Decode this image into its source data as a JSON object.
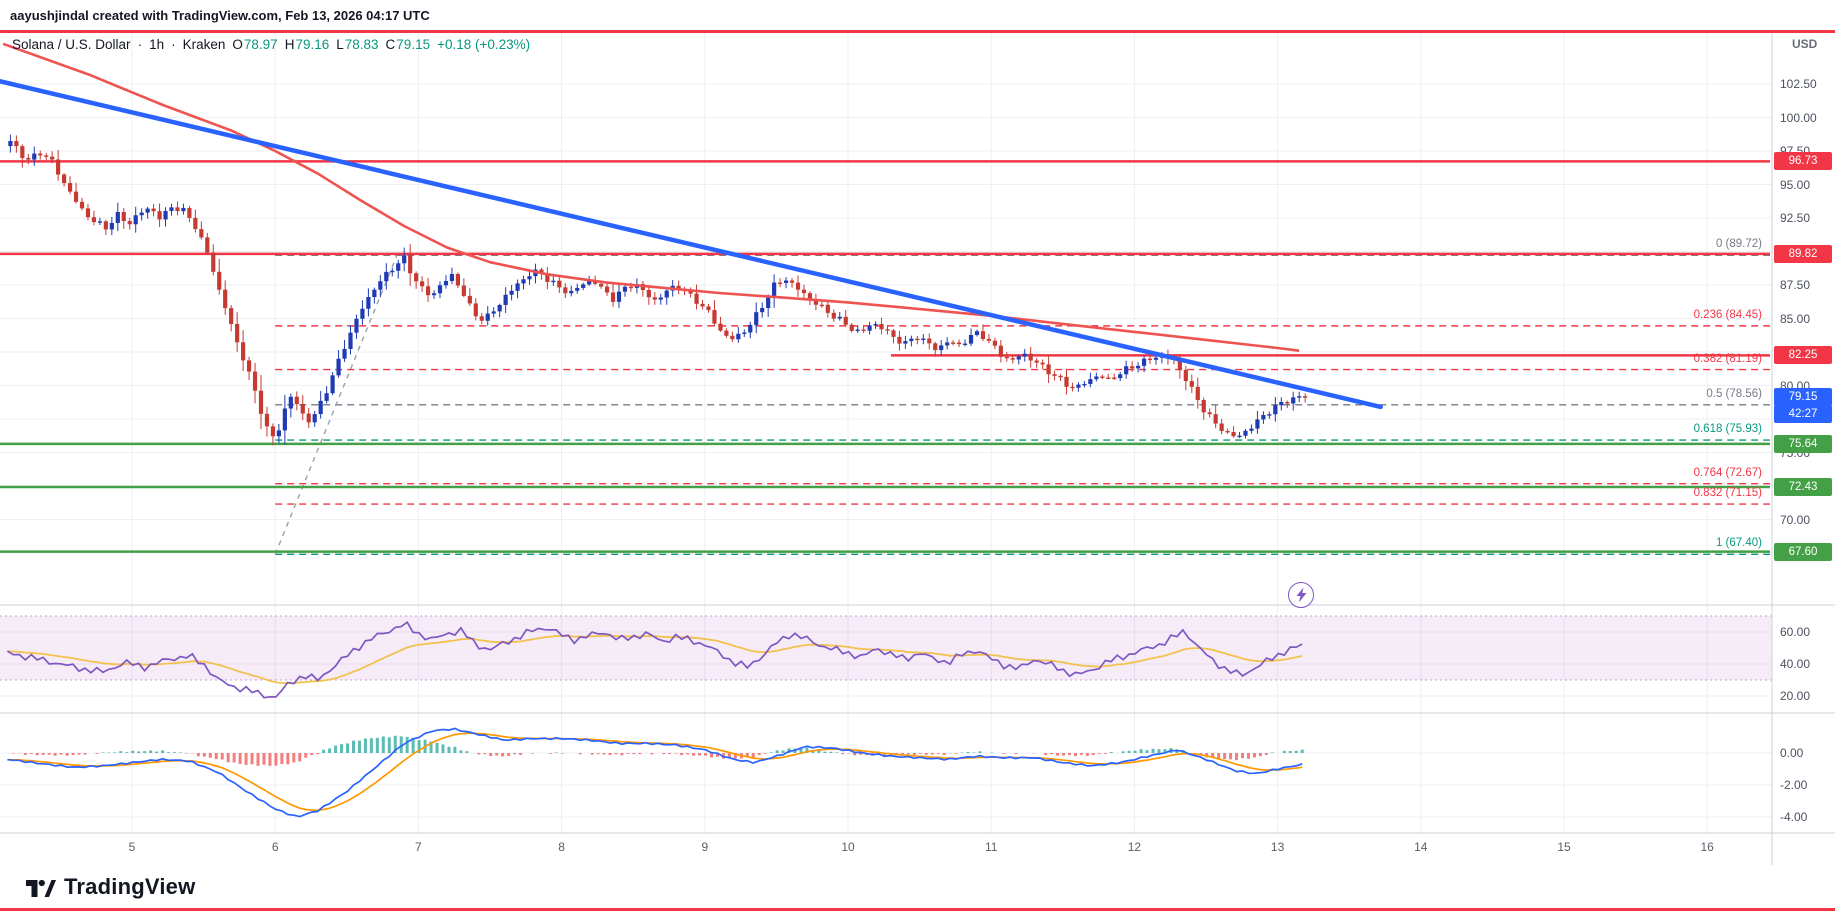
{
  "attribution": "aayushjindal created with TradingView.com, Feb 13, 2026 04:17 UTC",
  "symbol_header": {
    "name": "Solana / U.S. Dollar",
    "separator": "·",
    "interval": "1h",
    "exchange": "Kraken",
    "ohlc": [
      {
        "label": "O",
        "value": "78.97"
      },
      {
        "label": "H",
        "value": "79.16"
      },
      {
        "label": "L",
        "value": "78.83"
      },
      {
        "label": "C",
        "value": "79.15"
      }
    ],
    "change": "+0.18 (+0.23%)"
  },
  "price_axis": {
    "currency": "USD",
    "ticks": [
      "102.50",
      "100.00",
      "97.50",
      "95.00",
      "92.50",
      "90.00",
      "87.50",
      "85.00",
      "82.50",
      "80.00",
      "77.50",
      "75.00",
      "72.50",
      "70.00",
      "67.50"
    ],
    "badges": [
      {
        "text": "96.73",
        "price": 96.73,
        "color": "#f23645"
      },
      {
        "text": "89.82",
        "price": 89.82,
        "color": "#f23645"
      },
      {
        "text": "82.25",
        "price": 82.25,
        "color": "#f23645"
      },
      {
        "text": "79.15",
        "price": 79.15,
        "color": "#2962ff"
      },
      {
        "text": "42:27",
        "price": 77.88,
        "color": "#2962ff"
      },
      {
        "text": "75.64",
        "price": 75.64,
        "color": "#43a047"
      },
      {
        "text": "72.43",
        "price": 72.43,
        "color": "#43a047"
      },
      {
        "text": "67.60",
        "price": 67.6,
        "color": "#43a047"
      }
    ]
  },
  "rsi_axis": [
    "60.00",
    "40.00",
    "20.00"
  ],
  "macd_axis": [
    "0.00",
    "-2.00",
    "-4.00"
  ],
  "time_axis": {
    "labels": [
      "5",
      "6",
      "7",
      "8",
      "9",
      "10",
      "11",
      "12",
      "13",
      "14",
      "15",
      "16"
    ]
  },
  "logo": {
    "text": "TradingView"
  },
  "chart_data": {
    "type": "candlestick",
    "title": "Solana / U.S. Dollar",
    "interval": "1h",
    "exchange": "Kraken",
    "x_unit": "day of Feb 2026",
    "y_range": [
      66,
      104.5
    ],
    "ohlc_current": {
      "open": 78.97,
      "high": 79.16,
      "low": 78.83,
      "close": 79.15,
      "change_pct": 0.23
    },
    "start_day": 4.13,
    "end_day": 13.18,
    "colors": {
      "bull": "#1f3bb3",
      "bear": "#c63a32"
    },
    "price_path": [
      [
        4.13,
        97.9
      ],
      [
        4.18,
        98.3
      ],
      [
        4.24,
        97.3
      ],
      [
        4.3,
        96.8
      ],
      [
        4.38,
        97.4
      ],
      [
        4.45,
        96.9
      ],
      [
        4.52,
        95.6
      ],
      [
        4.6,
        94.2
      ],
      [
        4.68,
        93.0
      ],
      [
        4.76,
        92.2
      ],
      [
        4.84,
        91.8
      ],
      [
        4.92,
        92.7
      ],
      [
        5.0,
        92.1
      ],
      [
        5.08,
        92.9
      ],
      [
        5.15,
        93.3
      ],
      [
        5.22,
        92.4
      ],
      [
        5.3,
        93.4
      ],
      [
        5.38,
        93.0
      ],
      [
        5.45,
        92.2
      ],
      [
        5.5,
        91.0
      ],
      [
        5.56,
        89.6
      ],
      [
        5.62,
        87.4
      ],
      [
        5.68,
        85.6
      ],
      [
        5.74,
        83.6
      ],
      [
        5.8,
        82.0
      ],
      [
        5.86,
        80.2
      ],
      [
        5.92,
        78.2
      ],
      [
        5.97,
        76.6
      ],
      [
        6.02,
        75.9
      ],
      [
        6.07,
        77.6
      ],
      [
        6.12,
        79.3
      ],
      [
        6.18,
        78.5
      ],
      [
        6.24,
        77.3
      ],
      [
        6.3,
        77.8
      ],
      [
        6.36,
        79.2
      ],
      [
        6.43,
        80.9
      ],
      [
        6.5,
        82.8
      ],
      [
        6.57,
        84.5
      ],
      [
        6.64,
        86.0
      ],
      [
        6.71,
        87.2
      ],
      [
        6.78,
        88.1
      ],
      [
        6.85,
        88.9
      ],
      [
        6.92,
        89.5
      ],
      [
        6.97,
        88.4
      ],
      [
        7.04,
        87.3
      ],
      [
        7.11,
        86.6
      ],
      [
        7.18,
        87.6
      ],
      [
        7.26,
        88.2
      ],
      [
        7.33,
        87.0
      ],
      [
        7.4,
        85.4
      ],
      [
        7.48,
        84.9
      ],
      [
        7.56,
        85.7
      ],
      [
        7.63,
        86.7
      ],
      [
        7.71,
        87.5
      ],
      [
        7.79,
        88.3
      ],
      [
        7.86,
        88.5
      ],
      [
        7.93,
        87.9
      ],
      [
        8.0,
        87.3
      ],
      [
        8.08,
        86.9
      ],
      [
        8.16,
        87.5
      ],
      [
        8.24,
        87.9
      ],
      [
        8.31,
        87.1
      ],
      [
        8.38,
        86.5
      ],
      [
        8.46,
        87.2
      ],
      [
        8.53,
        87.7
      ],
      [
        8.6,
        86.9
      ],
      [
        8.68,
        86.3
      ],
      [
        8.76,
        87.1
      ],
      [
        8.83,
        87.5
      ],
      [
        8.9,
        86.8
      ],
      [
        8.98,
        86.2
      ],
      [
        9.05,
        85.4
      ],
      [
        9.12,
        84.2
      ],
      [
        9.2,
        83.4
      ],
      [
        9.28,
        83.9
      ],
      [
        9.35,
        84.7
      ],
      [
        9.43,
        86.1
      ],
      [
        9.5,
        87.4
      ],
      [
        9.58,
        88.0
      ],
      [
        9.66,
        87.3
      ],
      [
        9.73,
        86.7
      ],
      [
        9.8,
        86.1
      ],
      [
        9.88,
        85.5
      ],
      [
        9.96,
        84.9
      ],
      [
        10.04,
        84.3
      ],
      [
        10.11,
        83.9
      ],
      [
        10.19,
        84.7
      ],
      [
        10.27,
        84.2
      ],
      [
        10.34,
        83.6
      ],
      [
        10.42,
        83.1
      ],
      [
        10.5,
        83.7
      ],
      [
        10.57,
        83.2
      ],
      [
        10.64,
        82.7
      ],
      [
        10.72,
        83.3
      ],
      [
        10.8,
        83.0
      ],
      [
        10.87,
        83.6
      ],
      [
        10.94,
        84.0
      ],
      [
        11.02,
        83.1
      ],
      [
        11.09,
        82.3
      ],
      [
        11.16,
        81.8
      ],
      [
        11.24,
        82.4
      ],
      [
        11.31,
        81.9
      ],
      [
        11.39,
        81.3
      ],
      [
        11.47,
        80.7
      ],
      [
        11.54,
        80.1
      ],
      [
        11.61,
        79.8
      ],
      [
        11.69,
        80.3
      ],
      [
        11.77,
        80.8
      ],
      [
        11.84,
        80.4
      ],
      [
        11.91,
        80.9
      ],
      [
        11.99,
        81.3
      ],
      [
        12.06,
        81.7
      ],
      [
        12.14,
        82.0
      ],
      [
        12.21,
        82.3
      ],
      [
        12.29,
        81.9
      ],
      [
        12.36,
        80.9
      ],
      [
        12.43,
        79.5
      ],
      [
        12.5,
        78.3
      ],
      [
        12.58,
        77.2
      ],
      [
        12.66,
        76.5
      ],
      [
        12.74,
        76.1
      ],
      [
        12.81,
        76.7
      ],
      [
        12.89,
        77.4
      ],
      [
        12.96,
        78.1
      ],
      [
        13.04,
        78.6
      ],
      [
        13.11,
        79.0
      ],
      [
        13.18,
        79.15
      ]
    ],
    "trendline": {
      "from": [
        4.08,
        102.7
      ],
      "to": [
        13.72,
        78.4
      ],
      "color": "#2962ff"
    },
    "red_ma_path": [
      [
        4.1,
        105.5
      ],
      [
        4.7,
        103.2
      ],
      [
        5.2,
        101.0
      ],
      [
        5.7,
        99.0
      ],
      [
        6.0,
        97.5
      ],
      [
        6.3,
        95.8
      ],
      [
        6.6,
        93.8
      ],
      [
        6.9,
        91.9
      ],
      [
        7.2,
        90.3
      ],
      [
        7.5,
        89.2
      ],
      [
        7.9,
        88.3
      ],
      [
        8.3,
        87.7
      ],
      [
        8.7,
        87.3
      ],
      [
        9.1,
        86.9
      ],
      [
        9.5,
        86.6
      ],
      [
        10.0,
        86.2
      ],
      [
        10.5,
        85.7
      ],
      [
        11.0,
        85.2
      ],
      [
        11.5,
        84.6
      ],
      [
        12.0,
        84.0
      ],
      [
        12.5,
        83.4
      ],
      [
        13.0,
        82.8
      ],
      [
        13.15,
        82.6
      ]
    ],
    "horizontal_lines": [
      {
        "price": 96.73,
        "color": "#f23645",
        "width": 2.5,
        "from": null
      },
      {
        "price": 89.82,
        "color": "#f23645",
        "width": 2.5,
        "from": null
      },
      {
        "price": 82.25,
        "color": "#f23645",
        "width": 2.5,
        "from": 10.3
      },
      {
        "price": 75.64,
        "color": "#43a047",
        "width": 2.5,
        "from": null
      },
      {
        "price": 72.43,
        "color": "#43a047",
        "width": 2.5,
        "from": null
      },
      {
        "price": 67.6,
        "color": "#43a047",
        "width": 2.5,
        "from": null
      }
    ],
    "fibonacci": {
      "start_day": 6.0,
      "anchors": [
        [
          6.0,
          67.4
        ],
        [
          6.85,
          89.72
        ]
      ],
      "levels": [
        {
          "label": "0 (89.72)",
          "price": 89.72,
          "color": "#787b86"
        },
        {
          "label": "0.236 (84.45)",
          "price": 84.45,
          "color": "#f23645"
        },
        {
          "label": "0.382 (81.19)",
          "price": 81.19,
          "color": "#f23645"
        },
        {
          "label": "0.5 (78.56)",
          "price": 78.56,
          "color": "#787b86"
        },
        {
          "label": "0.618 (75.93)",
          "price": 75.93,
          "color": "#089981"
        },
        {
          "label": "0.764 (72.67)",
          "price": 72.67,
          "color": "#f23645"
        },
        {
          "label": "0.832 (71.15)",
          "price": 71.15,
          "color": "#f23645"
        },
        {
          "label": "1 (67.40)",
          "price": 67.4,
          "color": "#089981"
        }
      ]
    },
    "rsi_panel": {
      "line_color": "#7e57c2",
      "ma_color": "#f2c14e",
      "band": [
        30,
        70
      ],
      "ticks": [
        60,
        40,
        20
      ],
      "path": [
        [
          4.13,
          47
        ],
        [
          4.3,
          44
        ],
        [
          4.5,
          40
        ],
        [
          4.65,
          37
        ],
        [
          4.8,
          35
        ],
        [
          4.95,
          41
        ],
        [
          5.1,
          38
        ],
        [
          5.25,
          43
        ],
        [
          5.4,
          45
        ],
        [
          5.5,
          40
        ],
        [
          5.6,
          30
        ],
        [
          5.7,
          26
        ],
        [
          5.8,
          24
        ],
        [
          5.9,
          21
        ],
        [
          6.0,
          19
        ],
        [
          6.1,
          28
        ],
        [
          6.2,
          33
        ],
        [
          6.3,
          30
        ],
        [
          6.4,
          38
        ],
        [
          6.5,
          45
        ],
        [
          6.6,
          52
        ],
        [
          6.7,
          57
        ],
        [
          6.8,
          61
        ],
        [
          6.9,
          65
        ],
        [
          7.0,
          59
        ],
        [
          7.1,
          55
        ],
        [
          7.2,
          59
        ],
        [
          7.3,
          61
        ],
        [
          7.4,
          52
        ],
        [
          7.5,
          49
        ],
        [
          7.6,
          53
        ],
        [
          7.7,
          57
        ],
        [
          7.8,
          61
        ],
        [
          7.9,
          63
        ],
        [
          8.0,
          58
        ],
        [
          8.1,
          55
        ],
        [
          8.2,
          58
        ],
        [
          8.3,
          60
        ],
        [
          8.4,
          55
        ],
        [
          8.5,
          57
        ],
        [
          8.6,
          59
        ],
        [
          8.7,
          54
        ],
        [
          8.8,
          57
        ],
        [
          8.9,
          55
        ],
        [
          9.0,
          52
        ],
        [
          9.1,
          47
        ],
        [
          9.2,
          41
        ],
        [
          9.3,
          38
        ],
        [
          9.4,
          45
        ],
        [
          9.5,
          53
        ],
        [
          9.6,
          59
        ],
        [
          9.7,
          56
        ],
        [
          9.8,
          52
        ],
        [
          9.9,
          49
        ],
        [
          10.0,
          47
        ],
        [
          10.1,
          44
        ],
        [
          10.2,
          50
        ],
        [
          10.3,
          46
        ],
        [
          10.4,
          43
        ],
        [
          10.5,
          47
        ],
        [
          10.6,
          43
        ],
        [
          10.7,
          41
        ],
        [
          10.8,
          46
        ],
        [
          10.9,
          49
        ],
        [
          11.0,
          43
        ],
        [
          11.1,
          39
        ],
        [
          11.2,
          37
        ],
        [
          11.3,
          43
        ],
        [
          11.4,
          40
        ],
        [
          11.5,
          36
        ],
        [
          11.6,
          33
        ],
        [
          11.7,
          36
        ],
        [
          11.8,
          41
        ],
        [
          11.9,
          44
        ],
        [
          12.0,
          47
        ],
        [
          12.1,
          50
        ],
        [
          12.2,
          53
        ],
        [
          12.3,
          58
        ],
        [
          12.35,
          61
        ],
        [
          12.45,
          50
        ],
        [
          12.55,
          42
        ],
        [
          12.65,
          36
        ],
        [
          12.75,
          33
        ],
        [
          12.85,
          38
        ],
        [
          12.95,
          43
        ],
        [
          13.05,
          48
        ],
        [
          13.18,
          52
        ]
      ]
    },
    "macd_panel": {
      "macd_color": "#2962ff",
      "signal_color": "#ff9800",
      "hist_pos_color": "#26a69a",
      "hist_neg_color": "#ef5350",
      "ticks": [
        0,
        -2,
        -4
      ],
      "path": [
        [
          4.13,
          -0.4
        ],
        [
          4.4,
          -0.7
        ],
        [
          4.6,
          -0.9
        ],
        [
          4.8,
          -0.8
        ],
        [
          5.0,
          -0.6
        ],
        [
          5.2,
          -0.4
        ],
        [
          5.4,
          -0.5
        ],
        [
          5.6,
          -1.2
        ],
        [
          5.8,
          -2.4
        ],
        [
          6.0,
          -3.5
        ],
        [
          6.15,
          -4.0
        ],
        [
          6.3,
          -3.6
        ],
        [
          6.5,
          -2.4
        ],
        [
          6.7,
          -0.9
        ],
        [
          6.9,
          0.6
        ],
        [
          7.1,
          1.4
        ],
        [
          7.25,
          1.5
        ],
        [
          7.4,
          1.2
        ],
        [
          7.6,
          0.8
        ],
        [
          7.8,
          0.9
        ],
        [
          8.0,
          0.9
        ],
        [
          8.2,
          0.8
        ],
        [
          8.4,
          0.6
        ],
        [
          8.6,
          0.6
        ],
        [
          8.8,
          0.5
        ],
        [
          9.0,
          0.2
        ],
        [
          9.2,
          -0.4
        ],
        [
          9.35,
          -0.6
        ],
        [
          9.5,
          -0.2
        ],
        [
          9.7,
          0.4
        ],
        [
          9.9,
          0.3
        ],
        [
          10.1,
          0.0
        ],
        [
          10.3,
          -0.2
        ],
        [
          10.5,
          -0.3
        ],
        [
          10.7,
          -0.4
        ],
        [
          10.9,
          -0.2
        ],
        [
          11.1,
          -0.3
        ],
        [
          11.3,
          -0.3
        ],
        [
          11.5,
          -0.6
        ],
        [
          11.7,
          -0.8
        ],
        [
          11.9,
          -0.6
        ],
        [
          12.1,
          -0.2
        ],
        [
          12.3,
          0.2
        ],
        [
          12.5,
          -0.4
        ],
        [
          12.7,
          -1.1
        ],
        [
          12.85,
          -1.3
        ],
        [
          13.0,
          -1.0
        ],
        [
          13.18,
          -0.7
        ]
      ]
    }
  }
}
